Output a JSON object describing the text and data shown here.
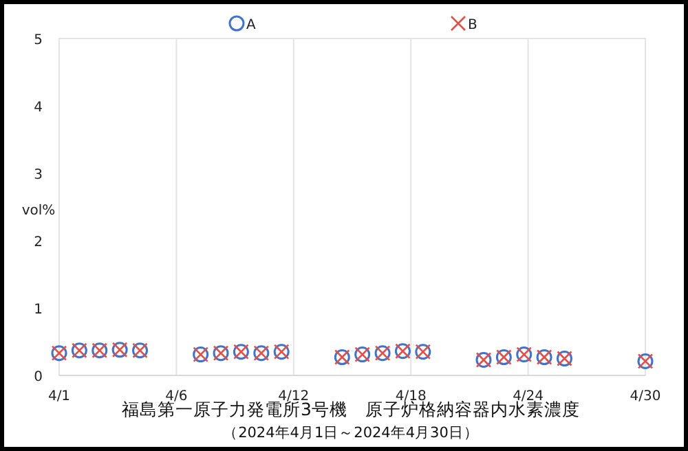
{
  "chart_data": {
    "type": "scatter",
    "title": "福島第一原子力発電所3号機　原子炉格納容器内水素濃度",
    "subtitle": "（2024年4月1日～2024年4月30日）",
    "ylabel": "vol%",
    "x": [
      "2024-04-01",
      "2024-04-02",
      "2024-04-03",
      "2024-04-04",
      "2024-04-05",
      "2024-04-08",
      "2024-04-09",
      "2024-04-10",
      "2024-04-11",
      "2024-04-12",
      "2024-04-15",
      "2024-04-16",
      "2024-04-17",
      "2024-04-18",
      "2024-04-19",
      "2024-04-22",
      "2024-04-23",
      "2024-04-24",
      "2024-04-25",
      "2024-04-26",
      "2024-04-30"
    ],
    "series": [
      {
        "name": "A",
        "color": "#4472c4",
        "marker": "circle",
        "values": [
          0.33,
          0.37,
          0.37,
          0.38,
          0.37,
          0.31,
          0.33,
          0.35,
          0.33,
          0.35,
          0.27,
          0.31,
          0.33,
          0.36,
          0.35,
          0.23,
          0.27,
          0.31,
          0.27,
          0.25,
          0.21
        ]
      },
      {
        "name": "B",
        "color": "#e0504a",
        "marker": "cross",
        "values": [
          0.33,
          0.37,
          0.37,
          0.38,
          0.37,
          0.31,
          0.33,
          0.35,
          0.33,
          0.35,
          0.27,
          0.31,
          0.33,
          0.36,
          0.35,
          0.23,
          0.27,
          0.31,
          0.27,
          0.25,
          0.21
        ]
      }
    ],
    "xlim": [
      "2024-04-01",
      "2024-04-30"
    ],
    "xticks": [
      {
        "value": "2024-04-01",
        "label": "4/1"
      },
      {
        "value": "2024-04-06T19:12",
        "label": "4/6"
      },
      {
        "value": "2024-04-12T14:24",
        "label": "4/12"
      },
      {
        "value": "2024-04-18T09:36",
        "label": "4/18"
      },
      {
        "value": "2024-04-24T04:48",
        "label": "4/24"
      },
      {
        "value": "2024-04-30",
        "label": "4/30"
      }
    ],
    "ylim": [
      0,
      5
    ],
    "yticks": [
      0,
      1,
      2,
      3,
      4,
      5
    ],
    "grid": "x",
    "legend": "top"
  }
}
